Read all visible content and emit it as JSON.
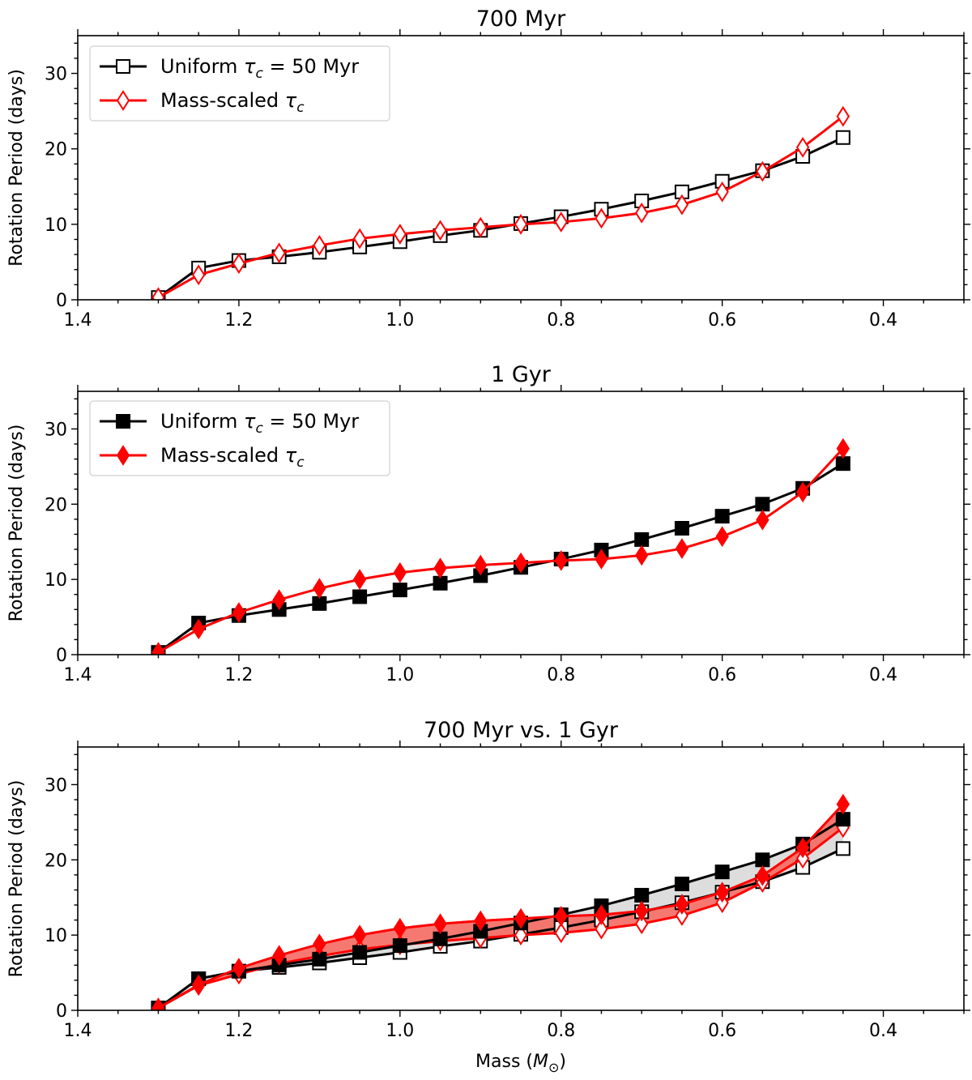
{
  "chart_data": [
    {
      "type": "line",
      "title": "700 Myr",
      "ylabel": "Rotation Period (days)",
      "xlabel": "",
      "xlim": [
        1.4,
        0.3
      ],
      "ylim": [
        0,
        35
      ],
      "x_ticks": [
        "1.4",
        "1.2",
        "1.0",
        "0.8",
        "0.6",
        "0.4"
      ],
      "y_ticks": [
        "0",
        "10",
        "20",
        "30"
      ],
      "grid": false,
      "legend": "top-left",
      "x": [
        1.3,
        1.25,
        1.2,
        1.15,
        1.1,
        1.05,
        1.0,
        0.95,
        0.9,
        0.85,
        0.8,
        0.75,
        0.7,
        0.65,
        0.6,
        0.55,
        0.5,
        0.45
      ],
      "series": [
        {
          "name": "Uniform τc = 50 Myr",
          "name_main": "Uniform ",
          "name_sym": "τ",
          "name_sub": "c",
          "name_rest": " = 50 Myr",
          "color": "#000000",
          "marker": "square",
          "filled": false,
          "values": [
            0.3,
            4.2,
            5.2,
            5.7,
            6.3,
            7.0,
            7.7,
            8.5,
            9.2,
            10.1,
            11.0,
            12.0,
            13.1,
            14.3,
            15.7,
            17.1,
            19.0,
            21.5
          ]
        },
        {
          "name": "Mass-scaled τc",
          "name_main": "Mass-scaled ",
          "name_sym": "τ",
          "name_sub": "c",
          "name_rest": "",
          "color": "#ff0000",
          "marker": "diamond",
          "filled": false,
          "values": [
            0.3,
            3.3,
            4.8,
            6.2,
            7.2,
            8.1,
            8.7,
            9.2,
            9.6,
            10.0,
            10.3,
            10.8,
            11.5,
            12.6,
            14.3,
            17.0,
            20.2,
            24.3
          ]
        }
      ]
    },
    {
      "type": "line",
      "title": "1 Gyr",
      "ylabel": "Rotation Period (days)",
      "xlabel": "",
      "xlim": [
        1.4,
        0.3
      ],
      "ylim": [
        0,
        35
      ],
      "x_ticks": [
        "1.4",
        "1.2",
        "1.0",
        "0.8",
        "0.6",
        "0.4"
      ],
      "y_ticks": [
        "0",
        "10",
        "20",
        "30"
      ],
      "grid": false,
      "legend": "top-left",
      "x": [
        1.3,
        1.25,
        1.2,
        1.15,
        1.1,
        1.05,
        1.0,
        0.95,
        0.9,
        0.85,
        0.8,
        0.75,
        0.7,
        0.65,
        0.6,
        0.55,
        0.5,
        0.45
      ],
      "series": [
        {
          "name": "Uniform τc = 50 Myr",
          "name_main": "Uniform ",
          "name_sym": "τ",
          "name_sub": "c",
          "name_rest": " = 50 Myr",
          "color": "#000000",
          "marker": "square",
          "filled": true,
          "values": [
            0.3,
            4.2,
            5.2,
            6.0,
            6.8,
            7.7,
            8.6,
            9.5,
            10.5,
            11.6,
            12.7,
            13.9,
            15.3,
            16.8,
            18.4,
            20.0,
            22.1,
            25.4
          ]
        },
        {
          "name": "Mass-scaled τc",
          "name_main": "Mass-scaled ",
          "name_sym": "τ",
          "name_sub": "c",
          "name_rest": "",
          "color": "#ff0000",
          "marker": "diamond",
          "filled": true,
          "values": [
            0.3,
            3.4,
            5.6,
            7.3,
            8.8,
            10.0,
            10.9,
            11.5,
            11.9,
            12.2,
            12.5,
            12.7,
            13.2,
            14.1,
            15.7,
            17.9,
            21.6,
            27.4
          ]
        }
      ]
    },
    {
      "type": "line",
      "title": "700 Myr vs. 1 Gyr",
      "ylabel": "Rotation Period (days)",
      "xlabel": "Mass (M⊙)",
      "xlabel_main": "Mass (",
      "xlabel_sym": "M",
      "xlabel_sub": "⊙",
      "xlabel_rest": ")",
      "xlim": [
        1.4,
        0.3
      ],
      "ylim": [
        0,
        35
      ],
      "x_ticks": [
        "1.4",
        "1.2",
        "1.0",
        "0.8",
        "0.6",
        "0.4"
      ],
      "y_ticks": [
        "0",
        "10",
        "20",
        "30"
      ],
      "grid": false,
      "fill_between": [
        {
          "between": [
            0,
            2
          ],
          "color": "#d9d9d9"
        },
        {
          "between": [
            1,
            3
          ],
          "color": "#f46a62"
        }
      ],
      "x": [
        1.3,
        1.25,
        1.2,
        1.15,
        1.1,
        1.05,
        1.0,
        0.95,
        0.9,
        0.85,
        0.8,
        0.75,
        0.7,
        0.65,
        0.6,
        0.55,
        0.5,
        0.45
      ],
      "series": [
        {
          "color": "#000000",
          "marker": "square",
          "filled": false,
          "values": [
            0.3,
            4.2,
            5.2,
            5.7,
            6.3,
            7.0,
            7.7,
            8.5,
            9.2,
            10.1,
            11.0,
            12.0,
            13.1,
            14.3,
            15.7,
            17.1,
            19.0,
            21.5
          ]
        },
        {
          "color": "#ff0000",
          "marker": "diamond",
          "filled": false,
          "values": [
            0.3,
            3.3,
            4.8,
            6.2,
            7.2,
            8.1,
            8.7,
            9.2,
            9.6,
            10.0,
            10.3,
            10.8,
            11.5,
            12.6,
            14.3,
            17.0,
            20.2,
            24.3
          ]
        },
        {
          "color": "#000000",
          "marker": "square",
          "filled": true,
          "values": [
            0.3,
            4.2,
            5.2,
            6.0,
            6.8,
            7.7,
            8.6,
            9.5,
            10.5,
            11.6,
            12.7,
            13.9,
            15.3,
            16.8,
            18.4,
            20.0,
            22.1,
            25.4
          ]
        },
        {
          "color": "#ff0000",
          "marker": "diamond",
          "filled": true,
          "values": [
            0.3,
            3.4,
            5.6,
            7.3,
            8.8,
            10.0,
            10.9,
            11.5,
            11.9,
            12.2,
            12.5,
            12.7,
            13.2,
            14.1,
            15.7,
            17.9,
            21.6,
            27.4
          ]
        }
      ]
    }
  ]
}
